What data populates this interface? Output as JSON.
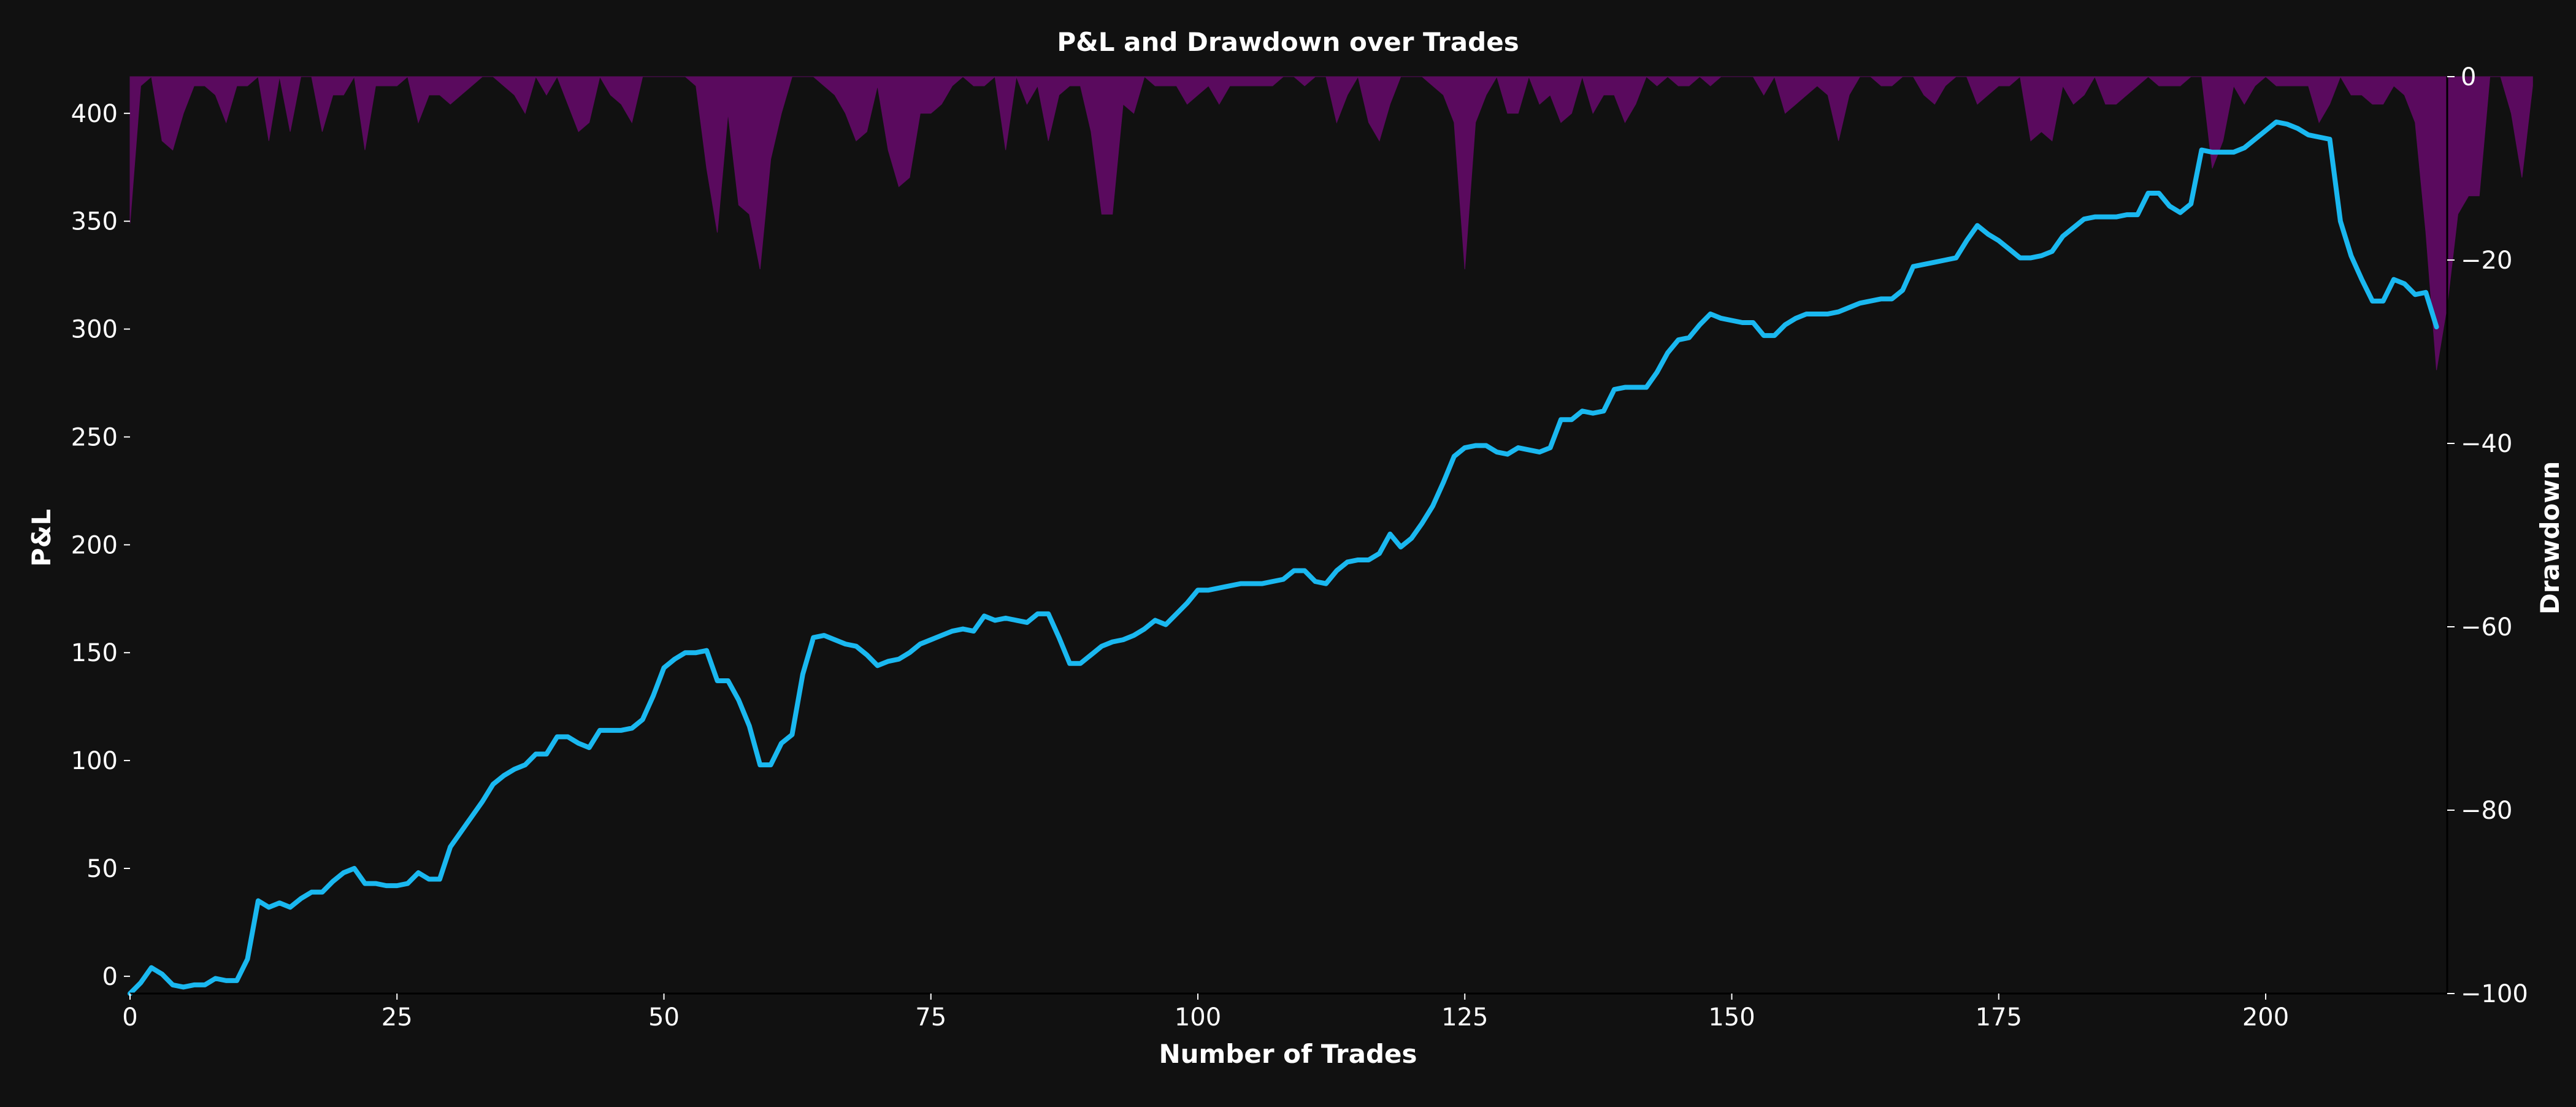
{
  "chart_data": {
    "type": "line",
    "title": "P&L and Drawdown over Trades",
    "xlabel": "Number of Trades",
    "ylabel": "P&L",
    "y2label": "Drawdown",
    "xlim": [
      0,
      217
    ],
    "ylim": [
      -8,
      417
    ],
    "y2lim": [
      -100,
      0
    ],
    "xticks": [
      0,
      25,
      50,
      75,
      100,
      125,
      150,
      175,
      200
    ],
    "yticks": [
      0,
      50,
      100,
      150,
      200,
      250,
      300,
      350,
      400
    ],
    "y2ticks": [
      0,
      -20,
      -40,
      -60,
      -80,
      -100
    ],
    "grid": false,
    "legend": "none",
    "colors": {
      "background": "#111111",
      "pnl": "#1ab8f0",
      "drawdown": "#5a0a5e",
      "text": "#ffffff"
    },
    "series": [
      {
        "type": "line",
        "axis": "left",
        "values": [
          -8,
          -3,
          4,
          1,
          -4,
          -5,
          -4,
          -4,
          -1,
          -2,
          -2,
          8,
          35,
          32,
          34,
          32,
          36,
          39,
          39,
          44,
          48,
          50,
          43,
          43,
          42,
          42,
          43,
          48,
          45,
          45,
          60,
          67,
          74,
          81,
          89,
          93,
          96,
          98,
          103,
          103,
          111,
          111,
          108,
          106,
          114,
          114,
          114,
          115,
          119,
          130,
          143,
          147,
          150,
          150,
          151,
          137,
          137,
          128,
          116,
          98,
          98,
          108,
          112,
          140,
          157,
          158,
          156,
          154,
          153,
          149,
          144,
          146,
          147,
          150,
          154,
          156,
          158,
          160,
          161,
          160,
          167,
          165,
          166,
          165,
          164,
          168,
          168,
          157,
          145,
          145,
          149,
          153,
          155,
          156,
          158,
          161,
          165,
          163,
          168,
          173,
          179,
          179,
          180,
          181,
          182,
          182,
          182,
          183,
          184,
          188,
          188,
          183,
          182,
          188,
          192,
          193,
          193,
          196,
          205,
          199,
          203,
          210,
          218,
          229,
          241,
          245,
          246,
          246,
          243,
          242,
          245,
          244,
          243,
          245,
          258,
          258,
          262,
          261,
          262,
          272,
          273,
          273,
          273,
          280,
          289,
          295,
          296,
          302,
          307,
          305,
          304,
          303,
          303,
          297,
          297,
          302,
          305,
          307,
          307,
          307,
          308,
          310,
          312,
          313,
          314,
          314,
          318,
          329,
          330,
          331,
          332,
          333,
          341,
          348,
          344,
          341,
          337,
          333,
          333,
          334,
          336,
          343,
          347,
          351,
          352,
          352,
          352,
          353,
          353,
          363,
          363,
          357,
          354,
          358,
          383,
          382,
          382,
          382,
          384,
          388,
          392,
          396,
          395,
          393,
          390,
          389,
          388,
          350,
          334,
          323,
          313,
          313,
          323,
          321,
          316,
          317,
          301
        ]
      },
      {
        "type": "area",
        "axis": "right",
        "values": [
          -16,
          -1,
          0,
          -7,
          -8,
          -4,
          -1,
          -1,
          -2,
          -5,
          -1,
          -1,
          0,
          -7,
          0,
          -6,
          0,
          0,
          -6,
          -2,
          -2,
          0,
          -8,
          -1,
          -1,
          -1,
          0,
          -5,
          -2,
          -2,
          -3,
          -2,
          -1,
          0,
          0,
          -1,
          -2,
          -4,
          0,
          -2,
          0,
          -3,
          -6,
          -5,
          0,
          -2,
          -3,
          -5,
          0,
          0,
          0,
          0,
          0,
          -1,
          -10,
          -17,
          -4,
          -14,
          -15,
          -21,
          -9,
          -4,
          0,
          0,
          0,
          -1,
          -2,
          -4,
          -7,
          -6,
          -1,
          -8,
          -12,
          -11,
          -4,
          -4,
          -3,
          -1,
          0,
          -1,
          -1,
          0,
          -8,
          0,
          -3,
          -1,
          -7,
          -2,
          -1,
          -1,
          -6,
          -15,
          -15,
          -3,
          -4,
          0,
          -1,
          -1,
          -1,
          -3,
          -2,
          -1,
          -3,
          -1,
          -1,
          -1,
          -1,
          -1,
          0,
          0,
          -1,
          0,
          0,
          -5,
          -2,
          0,
          -5,
          -7,
          -3,
          0,
          0,
          0,
          -1,
          -2,
          -5,
          -21,
          -5,
          -2,
          0,
          -4,
          -4,
          0,
          -3,
          -2,
          -5,
          -4,
          0,
          -4,
          -2,
          -2,
          -5,
          -3,
          0,
          -1,
          0,
          -1,
          -1,
          0,
          -1,
          0,
          0,
          0,
          0,
          -2,
          0,
          -4,
          -3,
          -2,
          -1,
          -2,
          -7,
          -2,
          0,
          0,
          -1,
          -1,
          0,
          0,
          -2,
          -3,
          -1,
          0,
          0,
          -3,
          -2,
          -1,
          -1,
          0,
          -7,
          -6,
          -7,
          -1,
          -3,
          -2,
          0,
          -3,
          -3,
          -2,
          -1,
          0,
          -1,
          -1,
          -1,
          0,
          0,
          -10,
          -7,
          -1,
          -3,
          -1,
          0,
          -1,
          -1,
          -1,
          -1,
          -5,
          -3,
          0,
          -2,
          -2,
          -3,
          -3,
          -1,
          -2,
          -5,
          -17,
          -32,
          -25,
          -15,
          -13,
          -13,
          0,
          0,
          -4,
          -11,
          -1
        ]
      }
    ]
  }
}
